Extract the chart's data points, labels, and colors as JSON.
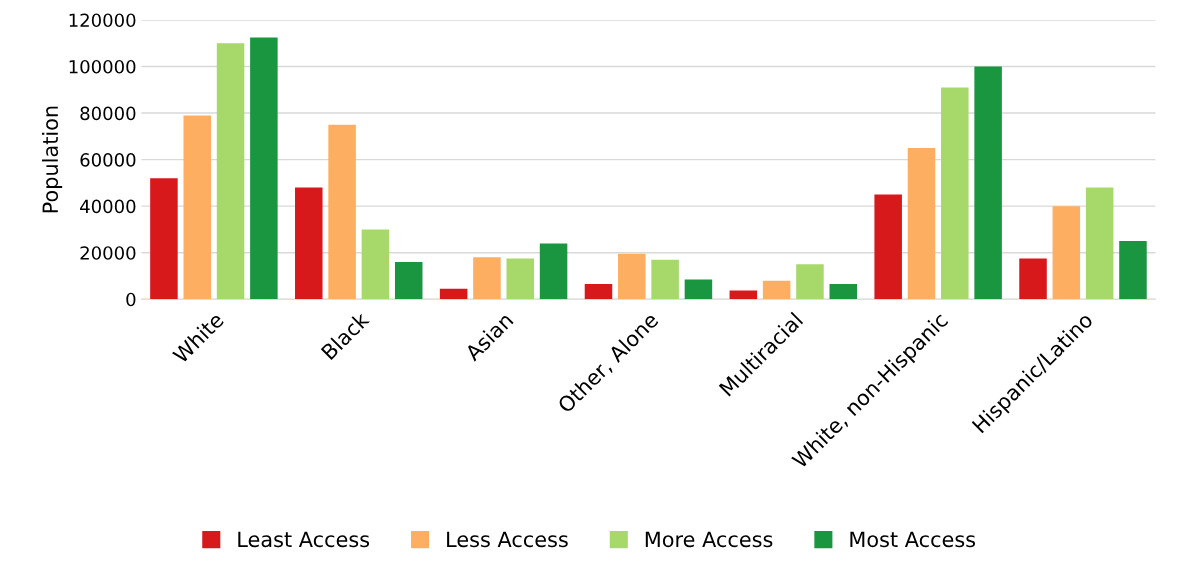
{
  "chart_data": {
    "type": "bar",
    "ylabel": "Population",
    "categories": [
      "White",
      "Black",
      "Asian",
      "Other, Alone",
      "Multiracial",
      "White, non-Hispanic",
      "Hispanic/Latino"
    ],
    "series": [
      {
        "name": "Least Access",
        "color": "#d7191c",
        "values": [
          52000,
          48000,
          4500,
          6500,
          3800,
          45000,
          17500
        ]
      },
      {
        "name": "Less Access",
        "color": "#fdae61",
        "values": [
          79000,
          75000,
          18000,
          19500,
          8000,
          65000,
          40000
        ]
      },
      {
        "name": "More Access",
        "color": "#a6d96a",
        "values": [
          110000,
          30000,
          17500,
          17000,
          15000,
          91000,
          48000
        ]
      },
      {
        "name": "Most Access",
        "color": "#1a9641",
        "values": [
          112500,
          16000,
          24000,
          8500,
          6500,
          100000,
          25000
        ]
      }
    ],
    "ylim": [
      0,
      120000
    ],
    "yticks": [
      0,
      20000,
      40000,
      60000,
      80000,
      100000,
      120000
    ],
    "grid": "y",
    "legend": "bottom"
  }
}
